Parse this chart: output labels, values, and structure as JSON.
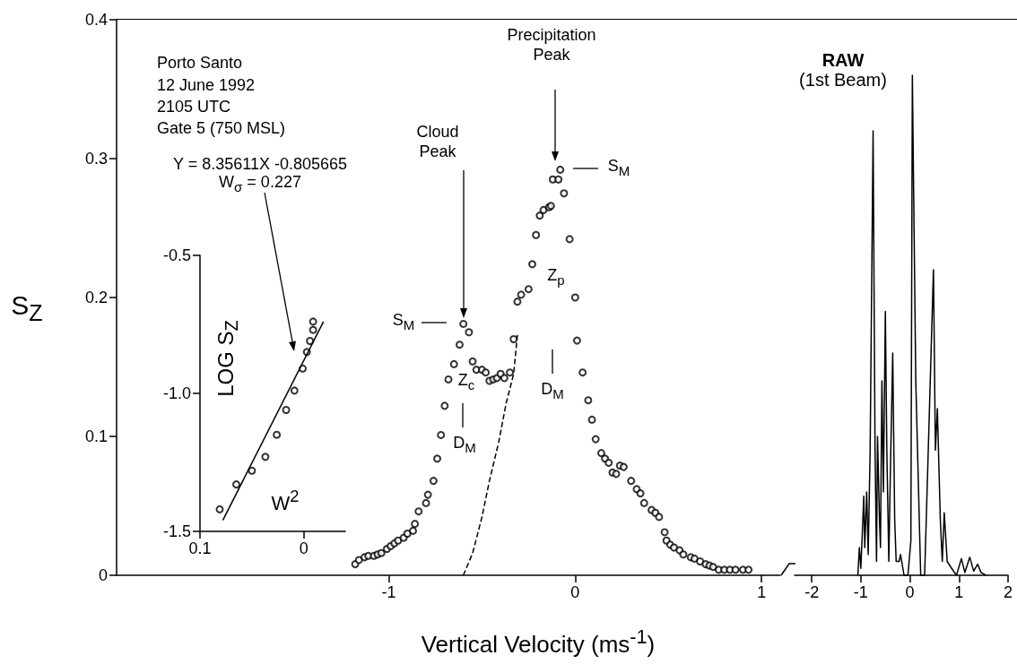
{
  "chart_data": [
    {
      "type": "scatter",
      "xlabel": "Vertical Velocity (ms$^{-1}$)",
      "ylabel": "S$_{Z}$",
      "xlim": [
        -2.46,
        1.1
      ],
      "xticks": [
        -1,
        0,
        1
      ],
      "ylim": [
        0,
        0.4
      ],
      "yticks": [
        0,
        0.1,
        0.2,
        0.3,
        0.4
      ],
      "marker": "circle",
      "series": [
        {
          "color": "#000000",
          "x": [
            -1.18,
            -1.16,
            -1.13,
            -1.11,
            -1.08,
            -1.06,
            -1.04,
            -1.01,
            -0.99,
            -0.97,
            -0.95,
            -0.92,
            -0.9,
            -0.87,
            -0.86,
            -0.84,
            -0.8,
            -0.79,
            -0.76,
            -0.74,
            -0.72,
            -0.7,
            -0.68,
            -0.65,
            -0.62,
            -0.6,
            -0.57,
            -0.55,
            -0.53,
            -0.5,
            -0.48,
            -0.46,
            -0.44,
            -0.42,
            -0.4,
            -0.38,
            -0.35,
            -0.33,
            -0.31,
            -0.29,
            -0.25,
            -0.23,
            -0.21,
            -0.19,
            -0.17,
            -0.14,
            -0.13,
            -0.12,
            -0.09,
            -0.08,
            -0.06,
            -0.03,
            0.0,
            0.01,
            0.04,
            0.07,
            0.09,
            0.11,
            0.14,
            0.16,
            0.18,
            0.2,
            0.22,
            0.24,
            0.26,
            0.3,
            0.33,
            0.35,
            0.37,
            0.41,
            0.43,
            0.45,
            0.48,
            0.49,
            0.51,
            0.53,
            0.56,
            0.58,
            0.62,
            0.64,
            0.67,
            0.7,
            0.72,
            0.74,
            0.77,
            0.8,
            0.83,
            0.86,
            0.9,
            0.93
          ],
          "values": [
            0.008,
            0.011,
            0.013,
            0.014,
            0.014,
            0.015,
            0.016,
            0.019,
            0.021,
            0.023,
            0.025,
            0.027,
            0.03,
            0.032,
            0.037,
            0.046,
            0.052,
            0.058,
            0.068,
            0.084,
            0.101,
            0.122,
            0.141,
            0.152,
            0.166,
            0.181,
            0.175,
            0.154,
            0.148,
            0.148,
            0.146,
            0.14,
            0.141,
            0.142,
            0.145,
            0.142,
            0.146,
            0.17,
            0.197,
            0.202,
            0.206,
            0.224,
            0.245,
            0.259,
            0.263,
            0.265,
            0.266,
            0.285,
            0.285,
            0.292,
            0.275,
            0.242,
            0.2,
            0.169,
            0.146,
            0.126,
            0.112,
            0.098,
            0.088,
            0.084,
            0.081,
            0.074,
            0.073,
            0.079,
            0.078,
            0.068,
            0.062,
            0.059,
            0.052,
            0.047,
            0.045,
            0.042,
            0.031,
            0.025,
            0.022,
            0.02,
            0.018,
            0.015,
            0.013,
            0.012,
            0.01,
            0.008,
            0.007,
            0.006,
            0.004,
            0.004,
            0.004,
            0.004,
            0.004,
            0.004
          ]
        },
        {
          "type": "line",
          "color": "#000000",
          "line_style": "dashed",
          "marker": "none",
          "x": [
            -0.6,
            -0.55,
            -0.5,
            -0.46,
            -0.41,
            -0.37,
            -0.33,
            -0.31
          ],
          "values": [
            0,
            0.016,
            0.042,
            0.068,
            0.096,
            0.124,
            0.145,
            0.173
          ]
        }
      ],
      "annotations": [
        "Porto Santo",
        "12 June 1992",
        "2105 UTC",
        "Gate 5 (750 MSL)",
        "Cloud Peak",
        "Precipitation Peak",
        "S$_{M}$",
        "S$_{M}$",
        "D$_{M}$",
        "D$_{M}$",
        "Z$_{c}$",
        "Z$_{p}$"
      ]
    },
    {
      "type": "scatter",
      "xlabel": "W$^{2}$",
      "ylabel": "LOG S$_{Z}$",
      "xlim": [
        0.1,
        -0.04
      ],
      "xticks": [
        0.1,
        0
      ],
      "ylim": [
        -1.5,
        -0.5
      ],
      "yticks": [
        -1.5,
        {
          "value": -1,
          "label": "-1.0"
        },
        -0.5
      ],
      "marker": "circle",
      "series": [
        {
          "color": "#000000",
          "x": [
            0.081,
            0.065,
            0.05,
            0.037,
            0.026,
            0.017,
            0.009,
            0.001,
            -0.003,
            -0.006,
            -0.009,
            -0.009
          ],
          "values": [
            -1.42,
            -1.33,
            -1.28,
            -1.23,
            -1.15,
            -1.06,
            -0.99,
            -0.91,
            -0.85,
            -0.81,
            -0.77,
            -0.74
          ]
        },
        {
          "type": "line",
          "color": "#000000",
          "marker": "none",
          "x": [
            0.078,
            -0.019
          ],
          "values": [
            -1.46,
            -0.74
          ]
        }
      ],
      "annotations": [
        "Y = 8.35611X -0.805665",
        "W$_{σ}$ = 0.227"
      ]
    },
    {
      "type": "line",
      "title": "RAW",
      "subtitle": "(1st Beam)",
      "xlim": [
        -2.35,
        2
      ],
      "xticks": [
        -2,
        -1,
        0,
        1,
        2
      ],
      "ylim": [
        0,
        0.4
      ],
      "tick_labels": "x",
      "series": [
        {
          "color": "#000000",
          "x": [
            -1.06,
            -1.03,
            -1.0,
            -0.97,
            -0.94,
            -0.92,
            -0.88,
            -0.85,
            -0.81,
            -0.75,
            -0.71,
            -0.68,
            -0.66,
            -0.62,
            -0.6,
            -0.57,
            -0.54,
            -0.5,
            -0.47,
            -0.43,
            -0.4,
            -0.35,
            -0.31,
            -0.28,
            -0.22,
            -0.19,
            -0.12,
            -0.04,
            0.02,
            0.05,
            0.12,
            0.22,
            0.3,
            0.35,
            0.48,
            0.52,
            0.56,
            0.62,
            0.66,
            0.7,
            0.76,
            0.85,
            0.95,
            1.05,
            1.12,
            1.22,
            1.3,
            1.38,
            1.45,
            1.55
          ],
          "values": [
            0,
            0.02,
            0.005,
            0.03,
            0.057,
            0.02,
            0.06,
            0.015,
            0.09,
            0.32,
            0.09,
            0.01,
            0.1,
            0.04,
            0.02,
            0.14,
            0.06,
            0.19,
            0.09,
            0.01,
            0.07,
            0.16,
            0.04,
            0.01,
            0.01,
            0.015,
            0,
            0,
            0.025,
            0.36,
            0.14,
            0,
            0,
            0.06,
            0.22,
            0.09,
            0.12,
            0.04,
            0.01,
            0.045,
            0.01,
            0.005,
            0,
            0.012,
            0.002,
            0.013,
            0.003,
            0.008,
            0.002,
            0
          ]
        }
      ]
    }
  ]
}
